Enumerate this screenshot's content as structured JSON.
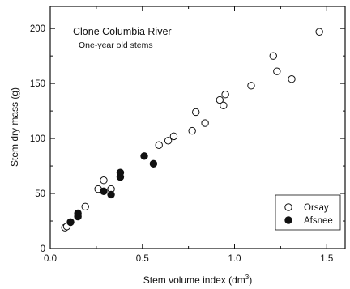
{
  "chart_data": {
    "type": "scatter",
    "title": "",
    "annotations": [
      "Clone Columbia River",
      "One-year old stems"
    ],
    "xlabel": "Stem volume index  (dm",
    "xlabel_sup": "3",
    "xlabel_close": ")",
    "ylabel": "Stem dry mass  (g)",
    "xlim": [
      0.0,
      1.6
    ],
    "ylim": [
      0,
      220
    ],
    "xticks": [
      0.0,
      0.5,
      1.0,
      1.5
    ],
    "xtick_labels": [
      "0.0",
      "0.5",
      "1.0",
      "1.5"
    ],
    "yticks": [
      0,
      50,
      100,
      150,
      200
    ],
    "ytick_labels": [
      "0",
      "50",
      "100",
      "150",
      "200"
    ],
    "grid": false,
    "legend_position": "bottom-right",
    "series": [
      {
        "name": "Orsay",
        "marker": "open-circle",
        "points": [
          [
            0.08,
            19
          ],
          [
            0.09,
            20
          ],
          [
            0.19,
            38
          ],
          [
            0.26,
            54
          ],
          [
            0.29,
            62
          ],
          [
            0.33,
            54
          ],
          [
            0.59,
            94
          ],
          [
            0.64,
            98
          ],
          [
            0.67,
            102
          ],
          [
            0.77,
            107
          ],
          [
            0.79,
            124
          ],
          [
            0.84,
            114
          ],
          [
            0.92,
            135
          ],
          [
            0.94,
            130
          ],
          [
            0.95,
            140
          ],
          [
            1.09,
            148
          ],
          [
            1.21,
            175
          ],
          [
            1.23,
            161
          ],
          [
            1.31,
            154
          ],
          [
            1.46,
            197
          ]
        ]
      },
      {
        "name": "Afsnee",
        "marker": "filled-circle",
        "points": [
          [
            0.11,
            24
          ],
          [
            0.15,
            29
          ],
          [
            0.15,
            32
          ],
          [
            0.29,
            52
          ],
          [
            0.33,
            49
          ],
          [
            0.38,
            65
          ],
          [
            0.38,
            69
          ],
          [
            0.51,
            84
          ],
          [
            0.56,
            77
          ]
        ]
      }
    ]
  },
  "colors": {
    "ink": "#111111",
    "background": "#ffffff"
  }
}
